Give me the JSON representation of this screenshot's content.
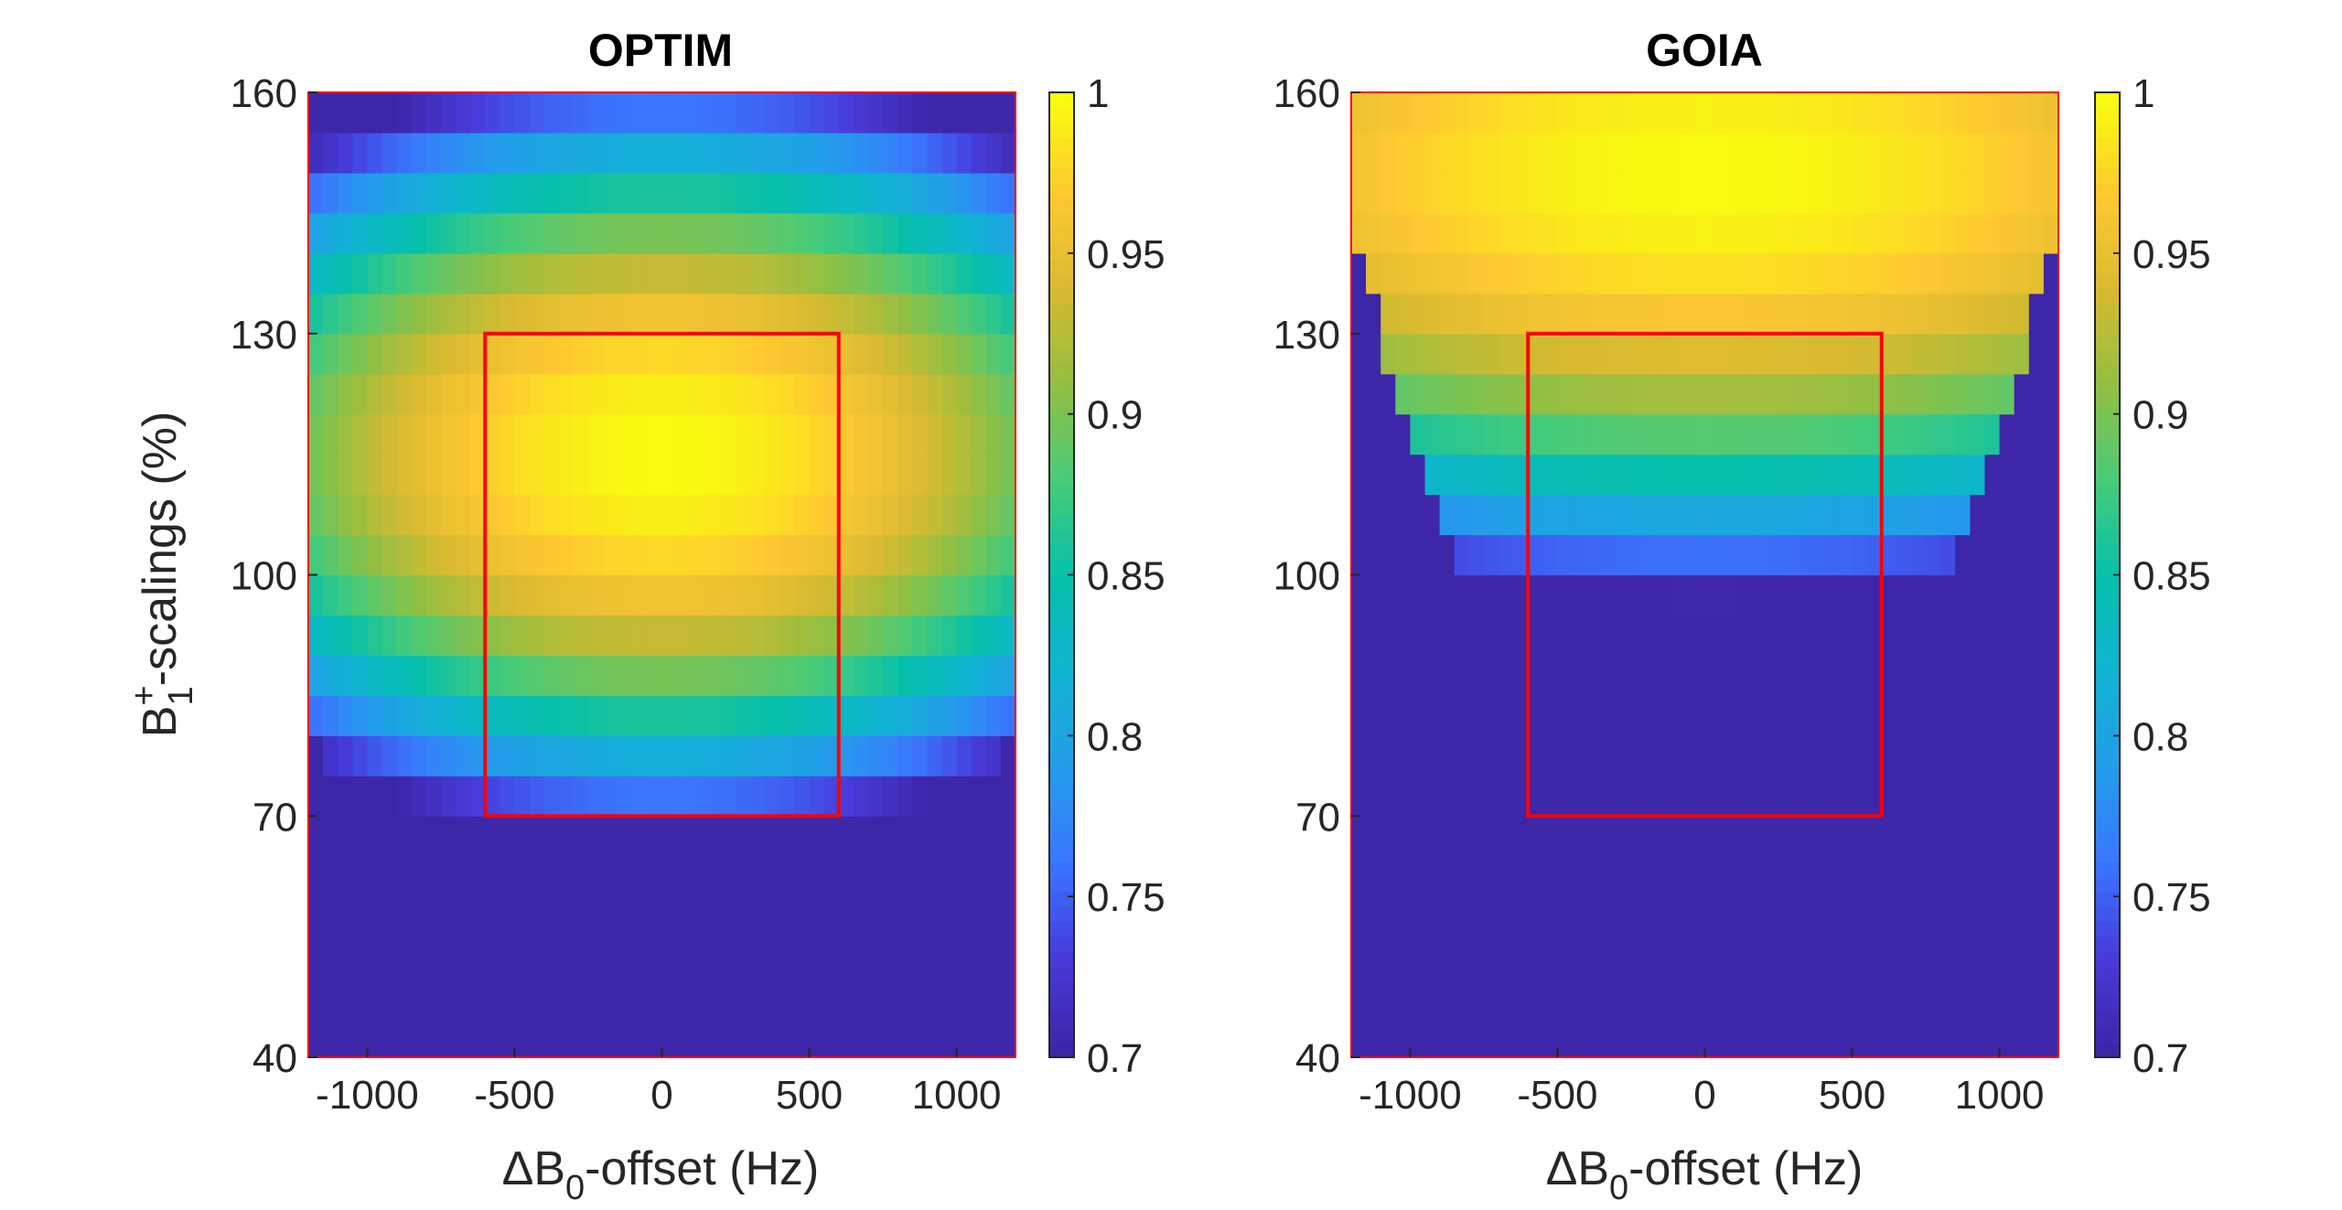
{
  "chart_data": [
    {
      "type": "heatmap",
      "title": "OPTIM",
      "xlabel": {
        "prefix": "ΔB",
        "sub": "0",
        "suffix": "-offset (Hz)"
      },
      "ylabel": {
        "prefix": "B",
        "sup": "+",
        "sub": "1",
        "suffix": "-scalings (%)"
      },
      "xlim": [
        -1200,
        1200
      ],
      "ylim": [
        40,
        160
      ],
      "x_step": 50,
      "y_step": 5,
      "xticks": [
        -1000,
        -500,
        0,
        500,
        1000
      ],
      "xtick_labels": [
        "-1000",
        "-500",
        "0",
        "500",
        "1000"
      ],
      "yticks": [
        40,
        70,
        100,
        130,
        160
      ],
      "ytick_labels": [
        "40",
        "70",
        "100",
        "130",
        "160"
      ],
      "colormap": "parula",
      "clim": [
        0.7,
        1
      ],
      "colorbar_ticks": [
        0.7,
        0.75,
        0.8,
        0.85,
        0.9,
        0.95,
        1
      ],
      "colorbar_tick_labels": [
        "0.7",
        "0.75",
        "0.8",
        "0.85",
        "0.9",
        "0.95",
        "1"
      ],
      "model": {
        "b1_center": 115,
        "b1_width": 45,
        "df_shape": 1.0,
        "cutoff_min_b1": 50,
        "cutoff_slope": 2e-05
      },
      "target_region": {
        "x": [
          -600,
          600
        ],
        "y": [
          70,
          130
        ],
        "color": "#ff0000"
      },
      "frame_color": "#ff0000"
    },
    {
      "type": "heatmap",
      "title": "GOIA",
      "xlabel": {
        "prefix": "ΔB",
        "sub": "0",
        "suffix": "-offset (Hz)"
      },
      "ylabel": null,
      "xlim": [
        -1200,
        1200
      ],
      "ylim": [
        40,
        160
      ],
      "x_step": 50,
      "y_step": 5,
      "xticks": [
        -1000,
        -500,
        0,
        500,
        1000
      ],
      "xtick_labels": [
        "-1000",
        "-500",
        "0",
        "500",
        "1000"
      ],
      "yticks": [
        40,
        70,
        100,
        130,
        160
      ],
      "ytick_labels": [
        "40",
        "70",
        "100",
        "130",
        "160"
      ],
      "colormap": "parula",
      "clim": [
        0.7,
        1
      ],
      "colorbar_ticks": [
        0.7,
        0.75,
        0.8,
        0.85,
        0.9,
        0.95,
        1
      ],
      "colorbar_tick_labels": [
        "0.7",
        "0.75",
        "0.8",
        "0.85",
        "0.9",
        "0.95",
        "1"
      ],
      "model": {
        "b1_center": 150,
        "b1_width": 50,
        "df_shape": 0.6,
        "cutoff_min_b1": 55,
        "cutoff_slope": 6.25e-05
      },
      "target_region": {
        "x": [
          -600,
          600
        ],
        "y": [
          70,
          130
        ],
        "color": "#ff0000"
      },
      "frame_color": "#ff0000"
    }
  ]
}
